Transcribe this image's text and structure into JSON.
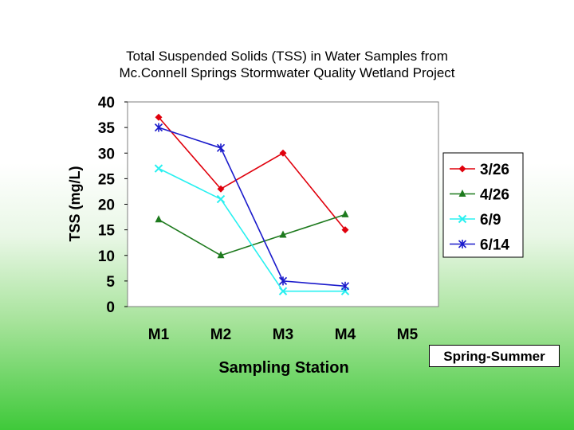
{
  "chart_data": {
    "type": "line",
    "title": "Total Suspended Solids (TSS) in Water Samples from",
    "subtitle": "Mc.Connell Springs Stormwater Quality Wetland Project",
    "xlabel": "Sampling Station",
    "ylabel": "TSS (mg/L)",
    "categories": [
      "M1",
      "M2",
      "M3",
      "M4",
      "M5"
    ],
    "ylim": [
      0,
      40
    ],
    "yticks": [
      0,
      5,
      10,
      15,
      20,
      25,
      30,
      35,
      40
    ],
    "grid": false,
    "legend_position": "right",
    "series": [
      {
        "name": "3/26",
        "values": [
          37,
          23,
          30,
          15,
          null
        ],
        "color": "#e0000c",
        "marker": "diamond"
      },
      {
        "name": "4/26",
        "values": [
          17,
          10,
          14,
          18,
          null
        ],
        "color": "#1e7a1e",
        "marker": "triangle"
      },
      {
        "name": "6/9",
        "values": [
          27,
          21,
          3,
          3,
          null
        ],
        "color": "#28f0f0",
        "marker": "x"
      },
      {
        "name": "6/14",
        "values": [
          35,
          31,
          5,
          4,
          null
        ],
        "color": "#1a1acb",
        "marker": "star"
      }
    ]
  },
  "badge": {
    "label": "Spring-Summer"
  }
}
